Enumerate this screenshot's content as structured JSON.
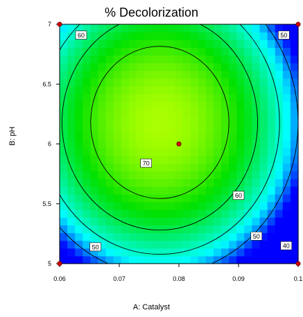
{
  "chart_data": {
    "type": "contour",
    "title": "% Decolorization",
    "xlabel": "A: Catalyst",
    "ylabel": "B: pH",
    "xlim": [
      0.06,
      0.1
    ],
    "ylim": [
      5,
      7
    ],
    "x_ticks": [
      "0.06",
      "0.07",
      "0.08",
      "0.09",
      "0.1"
    ],
    "y_ticks": [
      "5",
      "5.5",
      "6",
      "6.5",
      "7"
    ],
    "contour_levels": [
      40,
      50,
      60,
      70
    ],
    "contour_labels": [
      {
        "text": "60",
        "x": 0.0636,
        "y": 6.91
      },
      {
        "text": "50",
        "x": 0.0976,
        "y": 6.91
      },
      {
        "text": "70",
        "x": 0.0745,
        "y": 5.84
      },
      {
        "text": "60",
        "x": 0.09,
        "y": 5.57
      },
      {
        "text": "50",
        "x": 0.093,
        "y": 5.23
      },
      {
        "text": "50",
        "x": 0.066,
        "y": 5.14
      },
      {
        "text": "40",
        "x": 0.098,
        "y": 5.15
      }
    ],
    "design_points": [
      {
        "x": 0.06,
        "y": 7
      },
      {
        "x": 0.1,
        "y": 7
      },
      {
        "x": 0.06,
        "y": 5
      },
      {
        "x": 0.1,
        "y": 5
      },
      {
        "x": 0.08,
        "y": 6
      }
    ],
    "colors": {
      "low": "#0000ff",
      "mid": "#00ffff",
      "high": "#66ff00",
      "peak": "#aaff00",
      "point": "#cc0000"
    }
  }
}
